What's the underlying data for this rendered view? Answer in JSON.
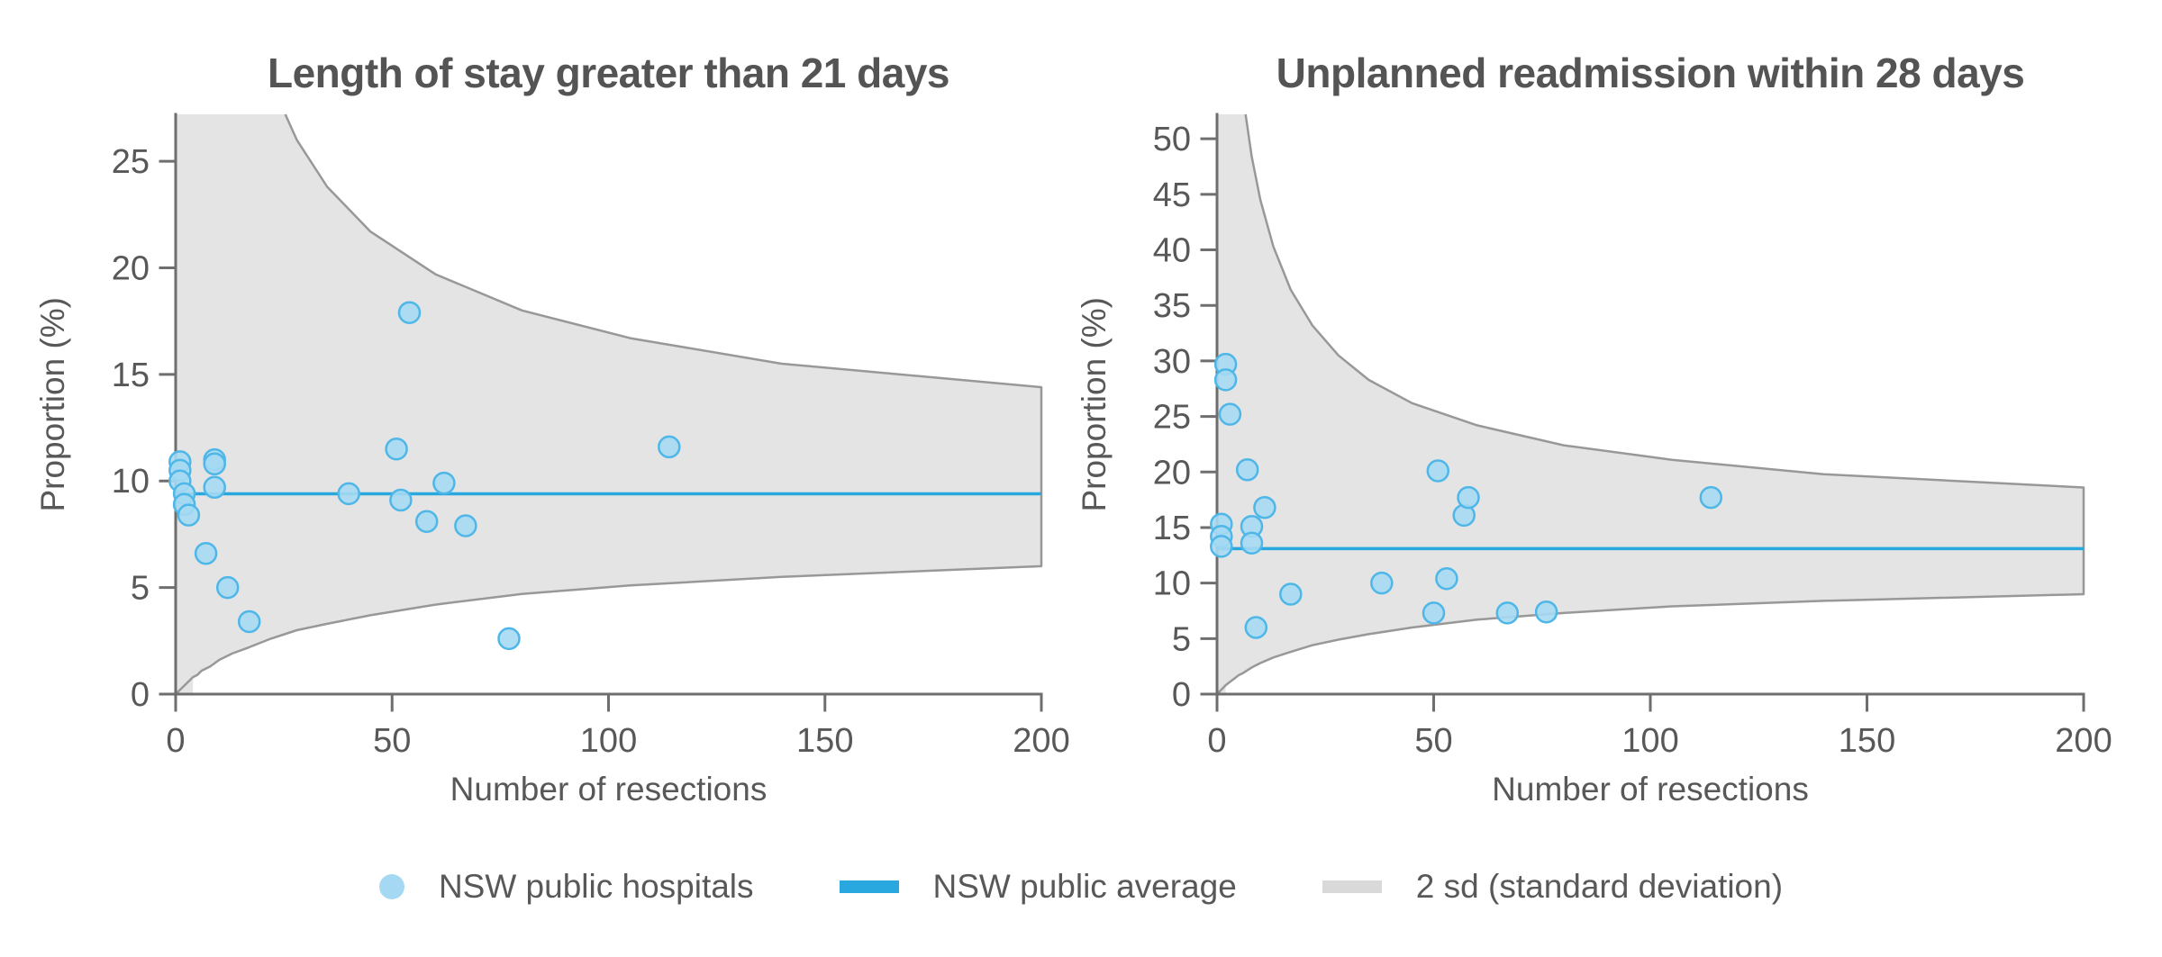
{
  "figure": {
    "background": "#ffffff",
    "kind": "funnel plots of hospital outcomes vs number of resections"
  },
  "colors": {
    "points_fill": "#a5d9f3",
    "points_stroke": "#4fb7e8",
    "average_line": "#29a8e0",
    "band_fill": "#e4e4e4",
    "band_stroke": "#989898",
    "axis": "#6e6e6e",
    "text": "#585858",
    "title": "#545454",
    "legend_gray_swatch": "#d9d9d9"
  },
  "legend": {
    "items": [
      {
        "swatch": "dot",
        "label": "NSW public hospitals"
      },
      {
        "swatch": "line-blue",
        "label": "NSW public average"
      },
      {
        "swatch": "line-gray",
        "label": "2 sd (standard deviation)"
      }
    ]
  },
  "chart_data": [
    {
      "type": "scatter",
      "subtype": "funnel-plot",
      "title": "Length of stay greater than 21 days",
      "xlabel": "Number of resections",
      "ylabel": "Proportion (%)",
      "xlim": [
        0,
        200
      ],
      "ylim": [
        0,
        27.2
      ],
      "x_ticks": [
        0,
        50,
        100,
        150,
        200
      ],
      "y_ticks": [
        0,
        5,
        10,
        15,
        20,
        25
      ],
      "grid": false,
      "average": 9.4,
      "band_label": "2 sd (standard deviation)",
      "points": [
        [
          1,
          10.9
        ],
        [
          1,
          10.5
        ],
        [
          1,
          10.0
        ],
        [
          2,
          9.4
        ],
        [
          2,
          8.9
        ],
        [
          3,
          8.4
        ],
        [
          7,
          6.6
        ],
        [
          9,
          11.0
        ],
        [
          9,
          10.8
        ],
        [
          9,
          9.7
        ],
        [
          12,
          5.0
        ],
        [
          17,
          3.4
        ],
        [
          40,
          9.4
        ],
        [
          51,
          11.5
        ],
        [
          52,
          9.1
        ],
        [
          54,
          17.9
        ],
        [
          58,
          8.1
        ],
        [
          62,
          9.9
        ],
        [
          67,
          7.9
        ],
        [
          77,
          2.6
        ],
        [
          114,
          11.6
        ]
      ],
      "funnel_n_lo_hi": [
        [
          1,
          0.2,
          83.5
        ],
        [
          2,
          0.4,
          72.5
        ],
        [
          3,
          0.6,
          64.6
        ],
        [
          4,
          0.8,
          58.6
        ],
        [
          5,
          0.9,
          54.0
        ],
        [
          6,
          1.1,
          50.2
        ],
        [
          8,
          1.3,
          44.5
        ],
        [
          10,
          1.6,
          40.4
        ],
        [
          13,
          1.9,
          36.0
        ],
        [
          17,
          2.2,
          32.0
        ],
        [
          22,
          2.6,
          28.7
        ],
        [
          28,
          3.0,
          26.0
        ],
        [
          35,
          3.3,
          23.8
        ],
        [
          45,
          3.7,
          21.7
        ],
        [
          60,
          4.2,
          19.7
        ],
        [
          80,
          4.7,
          18.0
        ],
        [
          105,
          5.1,
          16.7
        ],
        [
          140,
          5.5,
          15.5
        ],
        [
          200,
          6.0,
          14.4
        ]
      ]
    },
    {
      "type": "scatter",
      "subtype": "funnel-plot",
      "title": "Unplanned readmission within 28 days",
      "xlabel": "Number of resections",
      "ylabel": "Proportion (%)",
      "xlim": [
        0,
        200
      ],
      "ylim": [
        0,
        52.2
      ],
      "x_ticks": [
        0,
        50,
        100,
        150,
        200
      ],
      "y_ticks": [
        0,
        5,
        10,
        15,
        20,
        25,
        30,
        35,
        40,
        45,
        50
      ],
      "grid": false,
      "average": 13.1,
      "band_label": "2 sd (standard deviation)",
      "points": [
        [
          1,
          15.3
        ],
        [
          1,
          14.2
        ],
        [
          1,
          13.3
        ],
        [
          2,
          29.7
        ],
        [
          2,
          28.3
        ],
        [
          3,
          25.2
        ],
        [
          7,
          20.2
        ],
        [
          8,
          15.1
        ],
        [
          8,
          13.6
        ],
        [
          9,
          6.0
        ],
        [
          11,
          16.8
        ],
        [
          17,
          9.0
        ],
        [
          38,
          10.0
        ],
        [
          50,
          7.3
        ],
        [
          51,
          20.1
        ],
        [
          53,
          10.4
        ],
        [
          57,
          16.1
        ],
        [
          58,
          17.7
        ],
        [
          67,
          7.3
        ],
        [
          76,
          7.4
        ],
        [
          114,
          17.7
        ]
      ],
      "funnel_n_lo_hi": [
        [
          1,
          0.4,
          84.8
        ],
        [
          2,
          0.8,
          74.6
        ],
        [
          3,
          1.1,
          67.3
        ],
        [
          4,
          1.4,
          61.7
        ],
        [
          5,
          1.7,
          57.3
        ],
        [
          6,
          1.9,
          53.8
        ],
        [
          8,
          2.4,
          48.4
        ],
        [
          10,
          2.8,
          44.5
        ],
        [
          13,
          3.3,
          40.3
        ],
        [
          17,
          3.8,
          36.4
        ],
        [
          22,
          4.4,
          33.2
        ],
        [
          28,
          4.9,
          30.5
        ],
        [
          35,
          5.4,
          28.3
        ],
        [
          45,
          6.0,
          26.2
        ],
        [
          60,
          6.7,
          24.2
        ],
        [
          80,
          7.3,
          22.4
        ],
        [
          105,
          7.9,
          21.1
        ],
        [
          140,
          8.4,
          19.8
        ],
        [
          200,
          9.0,
          18.6
        ]
      ]
    }
  ]
}
